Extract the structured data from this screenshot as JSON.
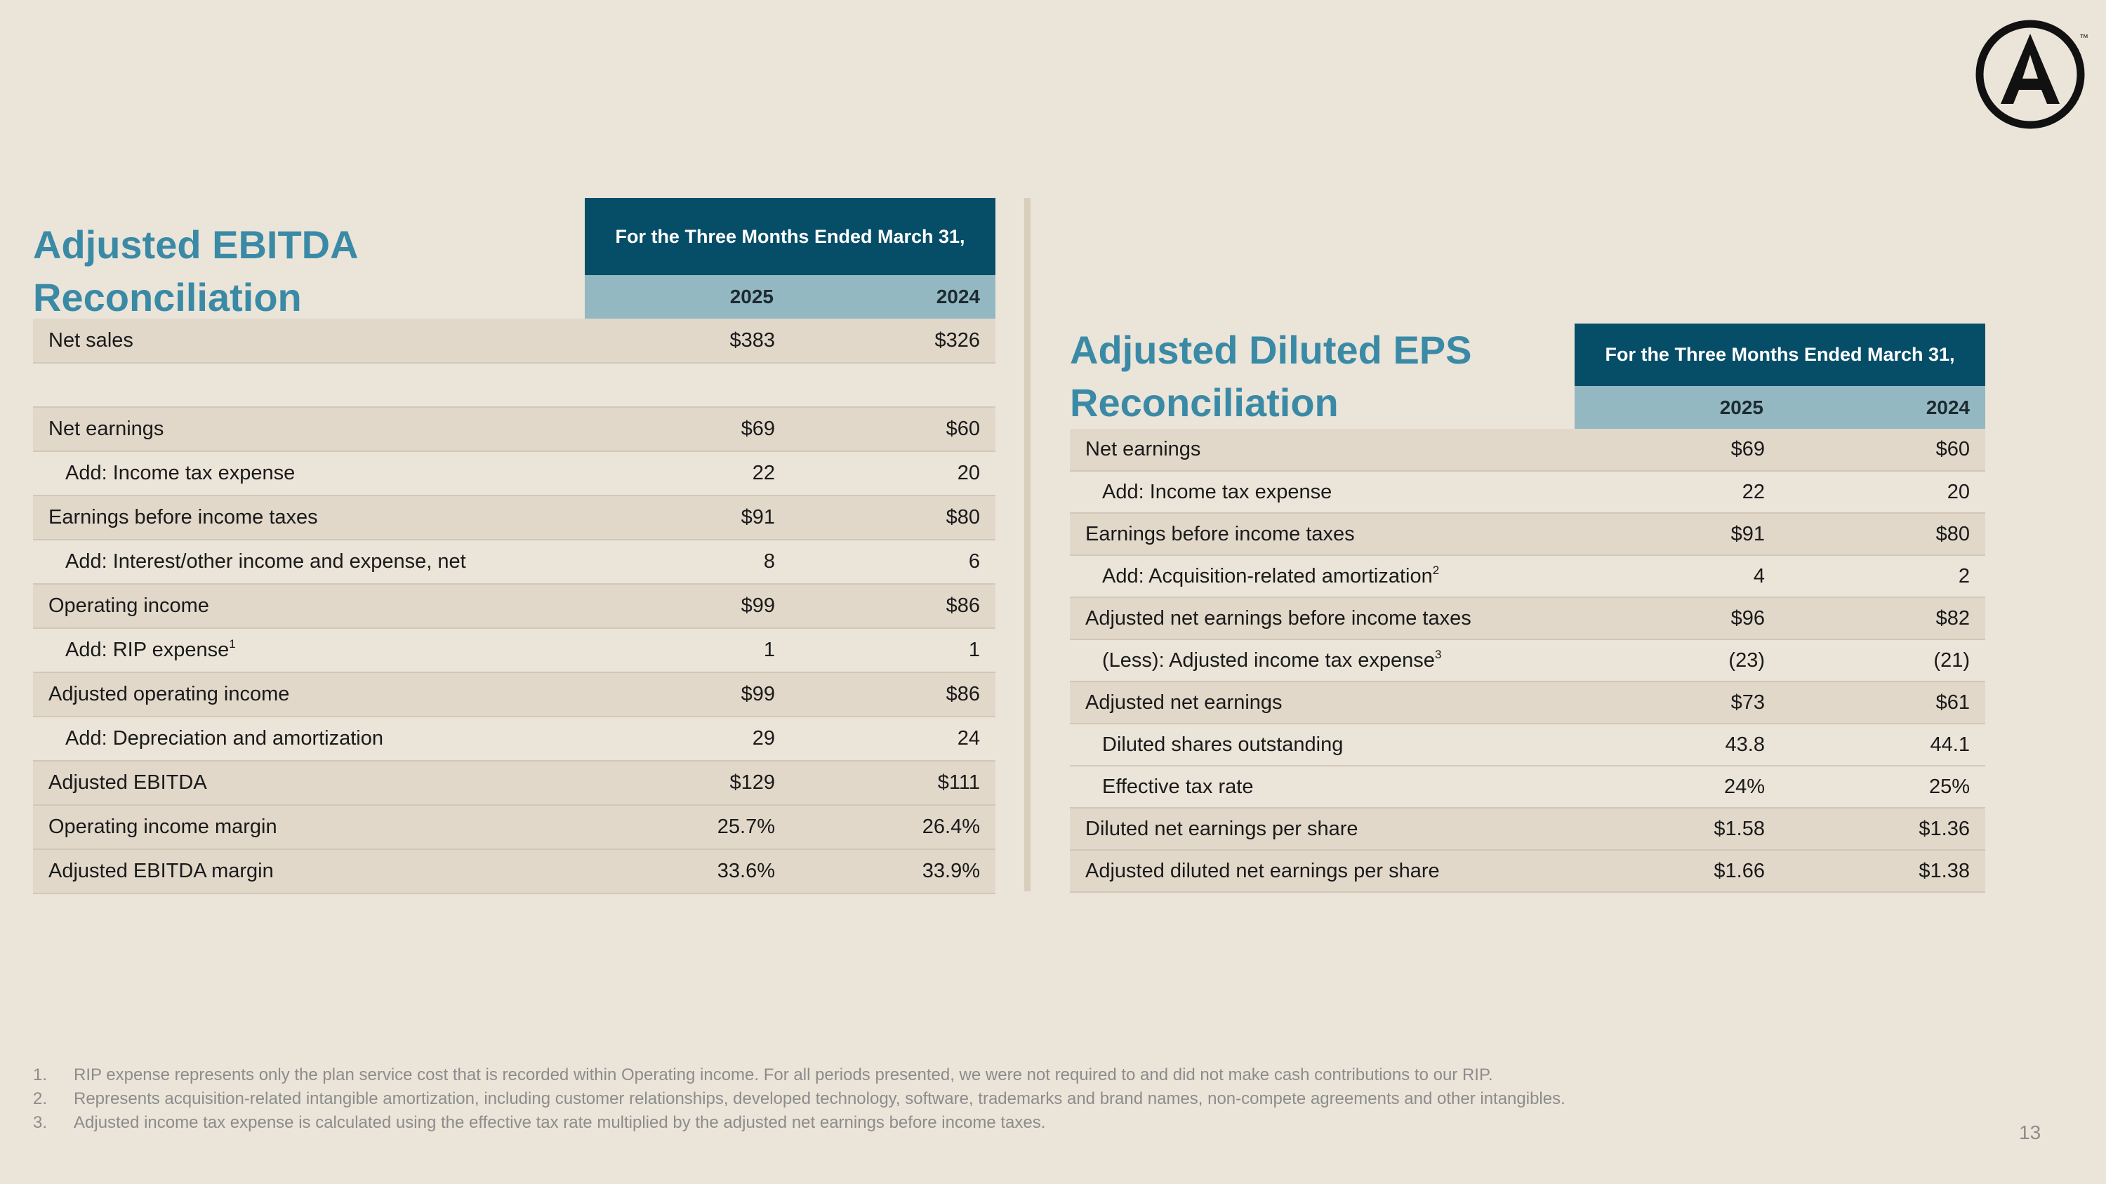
{
  "logo": {
    "icon": "circle-a-logo-icon",
    "trademark": "™"
  },
  "ebitda": {
    "title": "Adjusted EBITDA Reconciliation",
    "period_header": "For the Three Months Ended March 31,",
    "years": [
      "2025",
      "2024"
    ],
    "rows": [
      {
        "label": "Net sales",
        "sup": "",
        "v2025": "$383",
        "v2024": "$326"
      },
      {
        "label": "",
        "sup": "",
        "v2025": "",
        "v2024": ""
      },
      {
        "label": "Net earnings",
        "sup": "",
        "v2025": "$69",
        "v2024": "$60"
      },
      {
        "label": "Add: Income tax expense",
        "sup": "",
        "v2025": "22",
        "v2024": "20"
      },
      {
        "label": "Earnings before income taxes",
        "sup": "",
        "v2025": "$91",
        "v2024": "$80"
      },
      {
        "label": "Add: Interest/other income and expense, net",
        "sup": "",
        "v2025": "8",
        "v2024": "6"
      },
      {
        "label": "Operating income",
        "sup": "",
        "v2025": "$99",
        "v2024": "$86"
      },
      {
        "label": "Add: RIP expense",
        "sup": "1",
        "v2025": "1",
        "v2024": "1"
      },
      {
        "label": "Adjusted operating income",
        "sup": "",
        "v2025": "$99",
        "v2024": "$86"
      },
      {
        "label": "Add: Depreciation and amortization",
        "sup": "",
        "v2025": "29",
        "v2024": "24"
      },
      {
        "label": "Adjusted EBITDA",
        "sup": "",
        "v2025": "$129",
        "v2024": "$111"
      },
      {
        "label": "Operating income margin",
        "sup": "",
        "v2025": "25.7%",
        "v2024": "26.4%"
      },
      {
        "label": "Adjusted EBITDA margin",
        "sup": "",
        "v2025": "33.6%",
        "v2024": "33.9%"
      }
    ]
  },
  "eps": {
    "title": "Adjusted Diluted EPS Reconciliation",
    "period_header": "For the Three Months Ended March 31,",
    "years": [
      "2025",
      "2024"
    ],
    "rows": [
      {
        "label": "Net earnings",
        "sup": "",
        "v2025": "$69",
        "v2024": "$60"
      },
      {
        "label": "Add: Income tax expense",
        "sup": "",
        "v2025": "22",
        "v2024": "20"
      },
      {
        "label": "Earnings before income taxes",
        "sup": "",
        "v2025": "$91",
        "v2024": "$80"
      },
      {
        "label": "Add: Acquisition-related amortization",
        "sup": "2",
        "v2025": "4",
        "v2024": "2"
      },
      {
        "label": "Adjusted net earnings before income taxes",
        "sup": "",
        "v2025": "$96",
        "v2024": "$82"
      },
      {
        "label": "(Less): Adjusted income tax expense",
        "sup": "3",
        "v2025": "(23)",
        "v2024": "(21)"
      },
      {
        "label": "Adjusted net earnings",
        "sup": "",
        "v2025": "$73",
        "v2024": "$61"
      },
      {
        "label": "Diluted shares outstanding",
        "sup": "",
        "v2025": "43.8",
        "v2024": "44.1"
      },
      {
        "label": "Effective tax rate",
        "sup": "",
        "v2025": "24%",
        "v2024": "25%"
      },
      {
        "label": "Diluted net earnings per share",
        "sup": "",
        "v2025": "$1.58",
        "v2024": "$1.36"
      },
      {
        "label": "Adjusted diluted net earnings per share",
        "sup": "",
        "v2025": "$1.66",
        "v2024": "$1.38"
      }
    ]
  },
  "footnotes": [
    {
      "num": "1.",
      "text": "RIP expense represents only the plan service cost that is recorded within Operating income. For all periods presented, we were not required to and did not make cash contributions to our RIP."
    },
    {
      "num": "2.",
      "text": "Represents acquisition-related intangible amortization, including customer relationships, developed technology, software, trademarks and brand names, non-compete agreements and other intangibles."
    },
    {
      "num": "3.",
      "text": "Adjusted income tax expense is calculated using the effective tax rate multiplied by the adjusted net earnings before income taxes."
    }
  ],
  "page_number": "13"
}
